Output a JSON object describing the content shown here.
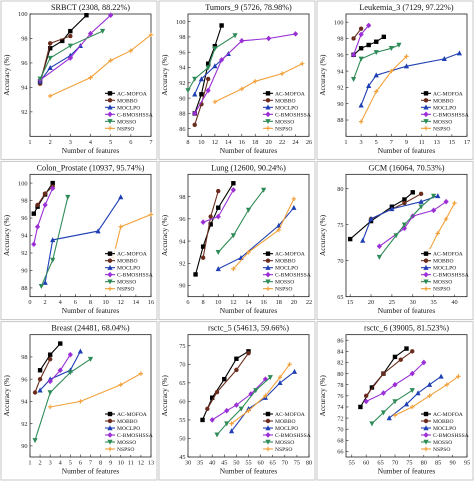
{
  "legend_labels": [
    "AC-MOFOA",
    "MOBBO",
    "MOCLPO",
    "C-BMOSHSSA",
    "MOSSO",
    "NSPSO"
  ],
  "colors": [
    "#000000",
    "#6a2d1d",
    "#1f3fb4",
    "#9a2fd6",
    "#2e8b57",
    "#f2a13a"
  ],
  "markers": [
    "square",
    "circle",
    "triangle-up",
    "diamond",
    "triangle-down",
    "plus"
  ],
  "chart_data": [
    {
      "type": "line",
      "title": "SRBCT (2308, 88.22%)",
      "xlabel": "Number of features",
      "ylabel": "Accuracy (%)",
      "xlim": [
        1,
        7
      ],
      "ylim": [
        90,
        100
      ],
      "xticks": [
        1,
        2,
        3,
        4,
        5,
        6,
        7
      ],
      "yticks": [
        92,
        94,
        96,
        98,
        100
      ],
      "series": [
        {
          "name": "AC-MOFOA",
          "x": [
            1.5,
            2,
            2.6,
            3,
            3.8
          ],
          "y": [
            94.5,
            97.2,
            97.8,
            98.6,
            99.9
          ]
        },
        {
          "name": "MOBBO",
          "x": [
            1.5,
            2,
            3
          ],
          "y": [
            94.3,
            97.6,
            98.2
          ]
        },
        {
          "name": "MOCLPO",
          "x": [
            1.5,
            2,
            3,
            3.5
          ],
          "y": [
            94.5,
            95.6,
            96.6,
            97.4
          ]
        },
        {
          "name": "C-BMOSHSSA",
          "x": [
            1.5,
            3,
            4,
            5
          ],
          "y": [
            94.6,
            96.4,
            98.4,
            99.9
          ]
        },
        {
          "name": "MOSSO",
          "x": [
            1.5,
            2,
            3,
            4.6
          ],
          "y": [
            94.7,
            96.4,
            97.4,
            98.6
          ]
        },
        {
          "name": "NSPSO",
          "x": [
            2,
            4,
            5,
            6,
            7
          ],
          "y": [
            93.3,
            94.8,
            96.2,
            97.0,
            98.3
          ]
        }
      ]
    },
    {
      "type": "line",
      "title": "Tumors_9 (5726, 78.98%)",
      "xlabel": "Number of features",
      "ylabel": "Accuracy (%)",
      "xlim": [
        8,
        26
      ],
      "ylim": [
        85,
        101
      ],
      "xticks": [
        8,
        10,
        12,
        14,
        16,
        18,
        20,
        22,
        24,
        26
      ],
      "yticks": [
        86,
        88,
        90,
        92,
        94,
        96,
        98,
        100
      ],
      "series": [
        {
          "name": "AC-MOFOA",
          "x": [
            9,
            10,
            11,
            12,
            13
          ],
          "y": [
            88,
            90.5,
            94.5,
            96.8,
            99.5
          ]
        },
        {
          "name": "MOBBO",
          "x": [
            9,
            10,
            11
          ],
          "y": [
            86.5,
            89.2,
            92.5
          ]
        },
        {
          "name": "MOCLPO",
          "x": [
            9,
            10,
            12,
            14
          ],
          "y": [
            90.5,
            92.5,
            94.2,
            95.8
          ]
        },
        {
          "name": "C-BMOSHSSA",
          "x": [
            9,
            11,
            13,
            16,
            20,
            24
          ],
          "y": [
            88,
            91,
            95,
            97.5,
            97.8,
            98.4
          ]
        },
        {
          "name": "MOSSO",
          "x": [
            8,
            9,
            11,
            12,
            15
          ],
          "y": [
            91,
            92.5,
            94,
            96.5,
            98.2
          ]
        },
        {
          "name": "NSPSO",
          "x": [
            12,
            16,
            18,
            22,
            25
          ],
          "y": [
            89.5,
            91.2,
            92.2,
            93.2,
            94.5
          ]
        }
      ]
    },
    {
      "type": "line",
      "title": "Leukemia_3 (7129, 97.22%)",
      "xlabel": "Number of features",
      "ylabel": "Accuracy (%)",
      "xlim": [
        1,
        17
      ],
      "ylim": [
        86,
        101
      ],
      "xticks": [
        1,
        3,
        5,
        7,
        9,
        11,
        13,
        15,
        17
      ],
      "yticks": [
        88,
        90,
        92,
        94,
        96,
        98,
        100
      ],
      "series": [
        {
          "name": "AC-MOFOA",
          "x": [
            2,
            3,
            4,
            5,
            6
          ],
          "y": [
            96,
            96.8,
            97.2,
            97.6,
            98.2
          ]
        },
        {
          "name": "MOBBO",
          "x": [
            2,
            3
          ],
          "y": [
            98,
            99.2
          ]
        },
        {
          "name": "MOCLPO",
          "x": [
            3,
            4,
            5,
            9,
            14,
            16
          ],
          "y": [
            89.8,
            92.2,
            93.5,
            94.6,
            95.5,
            96.2
          ]
        },
        {
          "name": "C-BMOSHSSA",
          "x": [
            2,
            3,
            4
          ],
          "y": [
            96,
            98.5,
            99.6
          ]
        },
        {
          "name": "MOSSO",
          "x": [
            2,
            3,
            5,
            7,
            8
          ],
          "y": [
            93,
            95.5,
            96.3,
            96.8,
            97.2
          ]
        },
        {
          "name": "NSPSO",
          "x": [
            3,
            5,
            7,
            9
          ],
          "y": [
            87.8,
            91.5,
            94,
            95.8
          ]
        }
      ]
    },
    {
      "type": "line",
      "title": "Colon_Prostate (10937, 95.74%)",
      "xlabel": "Number of features",
      "ylabel": "Accuracy (%)",
      "xlim": [
        0,
        16
      ],
      "ylim": [
        87,
        101
      ],
      "xticks": [
        0,
        2,
        4,
        6,
        8,
        10,
        12,
        14,
        16
      ],
      "yticks": [
        88,
        90,
        92,
        94,
        96,
        98,
        100
      ],
      "series": [
        {
          "name": "AC-MOFOA",
          "x": [
            0.5,
            1,
            2,
            3
          ],
          "y": [
            96.5,
            97.3,
            98.7,
            100
          ]
        },
        {
          "name": "MOBBO",
          "x": [
            1,
            2,
            3
          ],
          "y": [
            97.5,
            98.8,
            99.6
          ]
        },
        {
          "name": "MOCLPO",
          "x": [
            2,
            3,
            9,
            12
          ],
          "y": [
            88.6,
            93.5,
            94.5,
            98.4
          ]
        },
        {
          "name": "C-BMOSHSSA",
          "x": [
            0.5,
            1,
            2,
            3
          ],
          "y": [
            93,
            95,
            97.5,
            99.4
          ]
        },
        {
          "name": "MOSSO",
          "x": [
            1.5,
            3,
            5
          ],
          "y": [
            88.2,
            91.2,
            98.4
          ]
        },
        {
          "name": "NSPSO",
          "x": [
            11,
            12,
            16
          ],
          "y": [
            91.5,
            95,
            96.4
          ]
        }
      ]
    },
    {
      "type": "line",
      "title": "Lung (12600, 90.24%)",
      "xlabel": "Number of features",
      "ylabel": "Accuracy (%)",
      "xlim": [
        6,
        22
      ],
      "ylim": [
        89,
        100
      ],
      "xticks": [
        6,
        8,
        10,
        12,
        14,
        16,
        18,
        20,
        22
      ],
      "yticks": [
        90,
        92,
        94,
        96,
        98
      ],
      "series": [
        {
          "name": "AC-MOFOA",
          "x": [
            7,
            8,
            9,
            10,
            12
          ],
          "y": [
            91,
            93.5,
            95.5,
            97,
            99.2
          ]
        },
        {
          "name": "MOBBO",
          "x": [
            8,
            9,
            10
          ],
          "y": [
            92.5,
            96.2,
            98.5
          ]
        },
        {
          "name": "MOCLPO",
          "x": [
            10,
            13,
            18,
            20
          ],
          "y": [
            91.5,
            92.5,
            95.4,
            97
          ]
        },
        {
          "name": "C-BMOSHSSA",
          "x": [
            8,
            10,
            12
          ],
          "y": [
            95.7,
            96.2,
            98.6
          ]
        },
        {
          "name": "MOSSO",
          "x": [
            10,
            12,
            14,
            16
          ],
          "y": [
            93,
            94.5,
            96.8,
            98.6
          ]
        },
        {
          "name": "NSPSO",
          "x": [
            12,
            14,
            18,
            20
          ],
          "y": [
            91.5,
            93,
            95,
            97.8
          ]
        }
      ]
    },
    {
      "type": "line",
      "title": "GCM (16064, 70.53%)",
      "xlabel": "Number of features",
      "ylabel": "Accuracy (%)",
      "xlim": [
        14,
        43
      ],
      "ylim": [
        65,
        82
      ],
      "xticks": [
        15,
        20,
        25,
        30,
        35,
        40
      ],
      "yticks": [
        65,
        70,
        75,
        80
      ],
      "series": [
        {
          "name": "AC-MOFOA",
          "x": [
            15,
            20,
            25,
            28,
            30
          ],
          "y": [
            73,
            75.5,
            77.5,
            78.5,
            79.5
          ]
        },
        {
          "name": "MOBBO",
          "x": [
            20,
            28,
            32
          ],
          "y": [
            75.8,
            78,
            79.3
          ]
        },
        {
          "name": "MOCLPO",
          "x": [
            18,
            20,
            25,
            32,
            36
          ],
          "y": [
            72.8,
            75.8,
            77.2,
            78.2,
            79
          ]
        },
        {
          "name": "C-BMOSHSSA",
          "x": [
            22,
            28,
            30,
            35,
            38
          ],
          "y": [
            72,
            74.5,
            76.2,
            77,
            78.2
          ]
        },
        {
          "name": "MOSSO",
          "x": [
            22,
            26,
            28,
            32,
            35
          ],
          "y": [
            70.5,
            73.5,
            75,
            77.5,
            79
          ]
        },
        {
          "name": "NSPSO",
          "x": [
            32,
            34,
            36,
            38,
            40
          ],
          "y": [
            67,
            71.5,
            73.8,
            75.8,
            78
          ]
        }
      ]
    },
    {
      "type": "line",
      "title": "Breast (24481, 68.04%)",
      "xlabel": "Number of features",
      "ylabel": "Accuracy (%)",
      "xlim": [
        1,
        13
      ],
      "ylim": [
        89,
        100
      ],
      "xticks": [
        1,
        2,
        3,
        4,
        5,
        6,
        7,
        8,
        9,
        10,
        11,
        12,
        13
      ],
      "yticks": [
        90,
        92,
        94,
        96,
        98
      ],
      "series": [
        {
          "name": "AC-MOFOA",
          "x": [
            2,
            3,
            4
          ],
          "y": [
            96.8,
            98.2,
            99.2
          ]
        },
        {
          "name": "MOBBO",
          "x": [
            1.5,
            2,
            3
          ],
          "y": [
            94.8,
            96,
            97.8
          ]
        },
        {
          "name": "MOCLPO",
          "x": [
            2,
            3,
            5,
            6
          ],
          "y": [
            95,
            96,
            96.8,
            98.5
          ]
        },
        {
          "name": "C-BMOSHSSA",
          "x": [
            3,
            4,
            5
          ],
          "y": [
            95.8,
            96.8,
            98.2
          ]
        },
        {
          "name": "MOSSO",
          "x": [
            1.5,
            3,
            5,
            7
          ],
          "y": [
            90.5,
            94.8,
            96.6,
            97.8
          ]
        },
        {
          "name": "NSPSO",
          "x": [
            3,
            6,
            10,
            12
          ],
          "y": [
            93.5,
            94,
            95.5,
            96.5
          ]
        }
      ]
    },
    {
      "type": "line",
      "title": "rsctc_5 (54613, 59.66%)",
      "xlabel": "Number of features",
      "ylabel": "Accuracy (%)",
      "xlim": [
        30,
        80
      ],
      "ylim": [
        45,
        78
      ],
      "xticks": [
        30,
        35,
        40,
        45,
        50,
        55,
        60,
        65,
        70,
        75,
        80
      ],
      "yticks": [
        45,
        50,
        55,
        60,
        65,
        70,
        75
      ],
      "series": [
        {
          "name": "AC-MOFOA",
          "x": [
            36,
            40,
            45,
            50,
            55
          ],
          "y": [
            55,
            61,
            66,
            71.5,
            73.5
          ]
        },
        {
          "name": "MOBBO",
          "x": [
            38,
            42,
            50,
            55
          ],
          "y": [
            58,
            62.5,
            68.5,
            73
          ]
        },
        {
          "name": "MOCLPO",
          "x": [
            48,
            55,
            62,
            68,
            74
          ],
          "y": [
            52,
            58,
            61,
            65,
            68
          ]
        },
        {
          "name": "C-BMOSHSSA",
          "x": [
            40,
            46,
            50,
            56,
            62
          ],
          "y": [
            55,
            57.5,
            59,
            62,
            66
          ]
        },
        {
          "name": "MOSSO",
          "x": [
            42,
            46,
            52,
            58,
            64
          ],
          "y": [
            51,
            54,
            58,
            63,
            66.5
          ]
        },
        {
          "name": "NSPSO",
          "x": [
            48,
            55,
            62,
            68,
            72
          ],
          "y": [
            54,
            57.5,
            61.5,
            66.5,
            70
          ]
        }
      ]
    },
    {
      "type": "line",
      "title": "rsctc_6 (39005, 81.523%)",
      "xlabel": "Number of features",
      "ylabel": "Accuracy (%)",
      "xlim": [
        53,
        95
      ],
      "ylim": [
        65,
        87
      ],
      "xticks": [
        55,
        60,
        65,
        70,
        75,
        80,
        85,
        90,
        95
      ],
      "yticks": [
        66,
        68,
        70,
        72,
        74,
        76,
        78,
        80,
        82,
        84,
        86
      ],
      "series": [
        {
          "name": "AC-MOFOA",
          "x": [
            58,
            62,
            66,
            70,
            74
          ],
          "y": [
            74,
            77.5,
            80,
            83,
            84.5
          ]
        },
        {
          "name": "MOBBO",
          "x": [
            60,
            66,
            72,
            76
          ],
          "y": [
            76,
            80,
            82.5,
            84
          ]
        },
        {
          "name": "MOCLPO",
          "x": [
            68,
            74,
            78,
            82,
            86
          ],
          "y": [
            72,
            74.5,
            76.5,
            78,
            79.5
          ]
        },
        {
          "name": "C-BMOSHSSA",
          "x": [
            60,
            66,
            70,
            76,
            80
          ],
          "y": [
            75,
            76.5,
            78,
            80,
            82
          ]
        },
        {
          "name": "MOSSO",
          "x": [
            62,
            66,
            70,
            76
          ],
          "y": [
            71,
            73,
            75,
            77
          ]
        },
        {
          "name": "NSPSO",
          "x": [
            70,
            76,
            82,
            88,
            92
          ],
          "y": [
            72.5,
            74,
            76,
            78,
            79.5
          ]
        }
      ]
    }
  ]
}
